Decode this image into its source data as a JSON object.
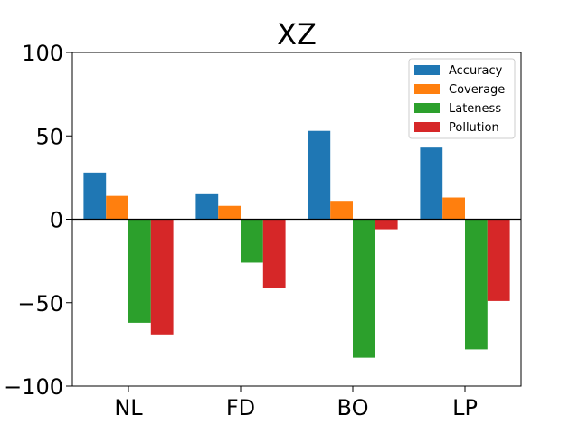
{
  "chart_data": {
    "type": "bar",
    "title": "XZ",
    "xlabel": "",
    "ylabel": "",
    "categories": [
      "NL",
      "FD",
      "BO",
      "LP"
    ],
    "series": [
      {
        "name": "Accuracy",
        "color": "#1f77b4",
        "values": [
          28,
          15,
          53,
          43
        ]
      },
      {
        "name": "Coverage",
        "color": "#ff7f0e",
        "values": [
          14,
          8,
          11,
          13
        ]
      },
      {
        "name": "Lateness",
        "color": "#2ca02c",
        "values": [
          -62,
          -26,
          -83,
          -78
        ]
      },
      {
        "name": "Pollution",
        "color": "#d62728",
        "values": [
          -69,
          -41,
          -6,
          -49
        ]
      }
    ],
    "ylim": [
      -100,
      100
    ],
    "yticks": [
      100,
      50,
      0,
      -50,
      -100
    ],
    "ytick_labels": [
      "100",
      "50",
      "0",
      "−50",
      "−100"
    ],
    "zero_line": true,
    "grid": false,
    "legend": "top-right"
  }
}
